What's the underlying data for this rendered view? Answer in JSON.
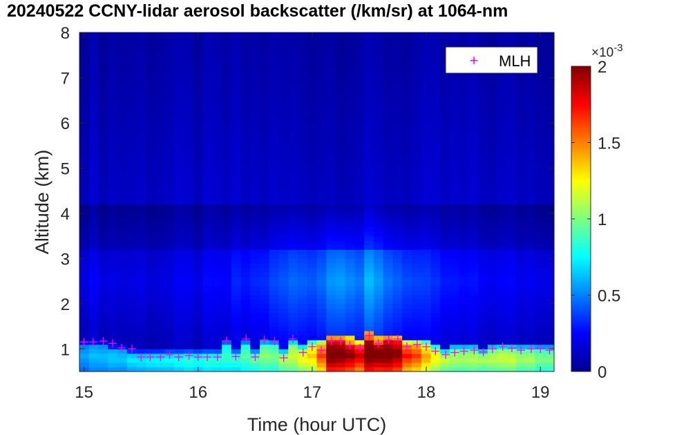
{
  "chart_data": {
    "type": "heatmap",
    "title": "20240522 CCNY-lidar aerosol backscatter (/km/sr) at 1064-nm",
    "xlabel": "Time (hour UTC)",
    "ylabel": "Altitude (km)",
    "xlim": [
      14.96,
      19.12
    ],
    "ylim": [
      0.5,
      8
    ],
    "xticks": [
      "15",
      "16",
      "17",
      "18",
      "19"
    ],
    "yticks": [
      "1",
      "2",
      "3",
      "4",
      "5",
      "6",
      "7",
      "8"
    ],
    "colorbar": {
      "colormap": "jet",
      "range": [
        0,
        0.002
      ],
      "ticks": [
        "0",
        "0.5",
        "1",
        "1.5",
        "2"
      ],
      "exponent_label": "×10",
      "exponent": "-3"
    },
    "legend": {
      "position": "top-right",
      "entries": [
        "MLH"
      ]
    },
    "series": [
      {
        "name": "MLH",
        "marker": "+",
        "color": "#ff00ff",
        "x": [
          15.0,
          15.08,
          15.17,
          15.25,
          15.33,
          15.42,
          15.5,
          15.58,
          15.67,
          15.75,
          15.83,
          15.92,
          16.0,
          16.08,
          16.17,
          16.25,
          16.33,
          16.42,
          16.5,
          16.58,
          16.67,
          16.75,
          16.83,
          16.92,
          17.0,
          17.08,
          17.17,
          17.25,
          17.33,
          17.42,
          17.5,
          17.58,
          17.67,
          17.75,
          17.83,
          17.92,
          18.0,
          18.08,
          18.17,
          18.25,
          18.33,
          18.42,
          18.5,
          18.58,
          18.67,
          18.75,
          18.83,
          18.92,
          19.0,
          19.08
        ],
        "y": [
          1.15,
          1.15,
          1.17,
          1.12,
          1.02,
          1.0,
          0.82,
          0.82,
          0.82,
          0.87,
          0.82,
          0.85,
          0.82,
          0.82,
          0.82,
          1.18,
          0.83,
          1.22,
          0.82,
          1.2,
          1.17,
          0.8,
          1.22,
          0.92,
          1.05,
          0.97,
          1.17,
          1.17,
          1.08,
          1.02,
          1.3,
          1.12,
          1.2,
          1.22,
          1.05,
          1.1,
          1.05,
          0.95,
          0.87,
          0.92,
          0.95,
          0.97,
          0.93,
          1.0,
          1.05,
          1.02,
          0.97,
          1.0,
          1.0,
          0.97
        ]
      }
    ],
    "field": {
      "description_units": "backscatter (/km/sr)",
      "surface_layer_top_km": [
        1.2,
        1.2,
        1.15,
        1.1,
        1.05,
        1.0,
        0.95,
        0.95,
        0.95,
        1.0,
        0.95,
        0.95,
        0.95,
        0.95,
        0.95,
        1.15,
        1.0,
        1.2,
        1.0,
        1.2,
        1.15,
        1.0,
        1.2,
        1.05,
        1.2,
        1.2,
        1.3,
        1.3,
        1.25,
        1.2,
        1.35,
        1.25,
        1.3,
        1.3,
        1.2,
        1.2,
        1.15,
        1.1,
        1.0,
        1.05,
        1.05,
        1.05,
        1.0,
        1.05,
        1.1,
        1.05,
        1.05,
        1.05,
        1.05,
        1.05
      ],
      "surface_peak_x1e-3": [
        0.55,
        0.55,
        0.6,
        0.6,
        0.6,
        0.65,
        0.65,
        0.7,
        0.7,
        0.7,
        0.7,
        0.75,
        0.75,
        0.75,
        0.75,
        0.8,
        0.75,
        0.85,
        0.85,
        0.95,
        0.9,
        1.0,
        1.05,
        1.15,
        1.25,
        1.5,
        1.95,
        1.95,
        1.85,
        1.7,
        1.95,
        1.9,
        1.95,
        1.85,
        1.6,
        1.5,
        1.3,
        1.15,
        1.05,
        1.0,
        1.0,
        1.0,
        1.0,
        1.05,
        1.05,
        1.05,
        1.0,
        1.0,
        0.95,
        0.95
      ],
      "residual_layer_x1e-3": [
        0.22,
        0.22,
        0.22,
        0.2,
        0.2,
        0.2,
        0.2,
        0.2,
        0.2,
        0.2,
        0.22,
        0.22,
        0.22,
        0.24,
        0.24,
        0.26,
        0.3,
        0.3,
        0.32,
        0.35,
        0.38,
        0.42,
        0.45,
        0.45,
        0.45,
        0.48,
        0.55,
        0.6,
        0.55,
        0.5,
        0.6,
        0.55,
        0.5,
        0.45,
        0.42,
        0.38,
        0.35,
        0.32,
        0.3,
        0.28,
        0.27,
        0.26,
        0.25,
        0.25,
        0.24,
        0.24,
        0.23,
        0.23,
        0.23,
        0.23
      ]
    }
  }
}
